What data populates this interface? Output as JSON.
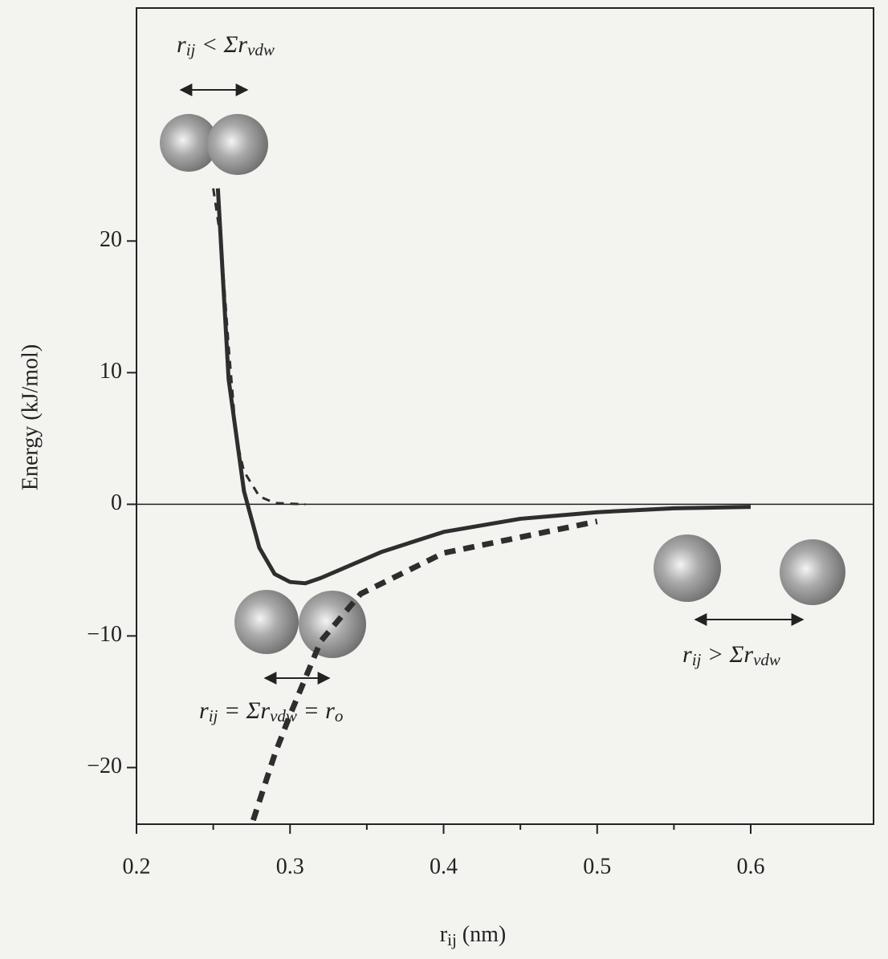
{
  "chart_data": {
    "type": "line",
    "y_label": "Energy  (kJ/mol)",
    "x_label": {
      "segments": [
        {
          "text": "r",
          "sub": false
        },
        {
          "text": "ij",
          "sub": true
        },
        {
          "text": " (nm)",
          "sub": false
        }
      ]
    },
    "xlim": [
      0.2,
      0.68
    ],
    "ylim": [
      -24.3,
      37.7
    ],
    "xticks": [
      0.2,
      0.3,
      0.4,
      0.5,
      0.6
    ],
    "xminorticks": [
      0.25,
      0.35,
      0.45,
      0.55
    ],
    "yticks": [
      {
        "value": -20,
        "label": "−20"
      },
      {
        "value": -10,
        "label": "−10"
      },
      0,
      10,
      20
    ],
    "zero_line": true,
    "series": [
      {
        "color": "#2e2e2e",
        "dash": "none",
        "width": 5,
        "x": [
          0.253,
          0.26,
          0.27,
          0.28,
          0.29,
          0.3,
          0.31,
          0.32,
          0.34,
          0.36,
          0.4,
          0.45,
          0.5,
          0.55,
          0.6
        ],
        "values": [
          24,
          9.5,
          1.0,
          -3.3,
          -5.3,
          -5.9,
          -6.0,
          -5.6,
          -4.6,
          -3.6,
          -2.1,
          -1.1,
          -0.6,
          -0.3,
          -0.2
        ]
      },
      {
        "color": "#2e2e2e",
        "dash": "10 8",
        "width": 3,
        "x": [
          0.25,
          0.255,
          0.26,
          0.265,
          0.27,
          0.28,
          0.29,
          0.31
        ],
        "values": [
          24,
          20,
          12,
          5,
          2.5,
          0.6,
          0.1,
          0
        ]
      },
      {
        "color": "#2e2e2e",
        "dash": "14 10",
        "width": 7,
        "x": [
          0.276,
          0.29,
          0.3,
          0.32,
          0.346,
          0.4,
          0.45,
          0.5
        ],
        "values": [
          -24,
          -19,
          -16,
          -10.4,
          -6.8,
          -3.7,
          -2.5,
          -1.3
        ]
      }
    ],
    "annotations": [
      {
        "segments": [
          {
            "text": "r",
            "sub": false
          },
          {
            "text": "ij",
            "sub": true
          },
          {
            "text": " < Σr",
            "sub": false
          },
          {
            "text": "vdw",
            "sub": true
          }
        ]
      },
      {
        "segments": [
          {
            "text": "r",
            "sub": false
          },
          {
            "text": "ij",
            "sub": true
          },
          {
            "text": " = Σr",
            "sub": false
          },
          {
            "text": "vdw",
            "sub": true
          },
          {
            "text": " = r",
            "sub": false
          },
          {
            "text": "o",
            "sub": true
          }
        ]
      },
      {
        "segments": [
          {
            "text": "r",
            "sub": false
          },
          {
            "text": "ij",
            "sub": true
          },
          {
            "text": " > Σr",
            "sub": false
          },
          {
            "text": "vdw",
            "sub": true
          }
        ]
      }
    ]
  }
}
